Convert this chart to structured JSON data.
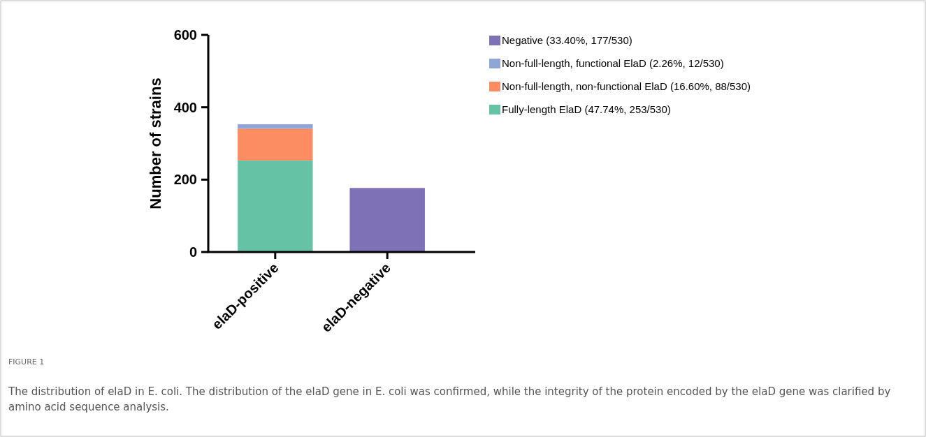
{
  "chart_data": {
    "type": "bar",
    "stacked": true,
    "categories": [
      "elaD-positive",
      "elaD-negative"
    ],
    "series": [
      {
        "name": "Fully-length ElaD (47.74%, 253/530)",
        "color": "#66c2a5",
        "values": [
          253,
          null
        ]
      },
      {
        "name": "Non-full-length, non-functional ElaD (16.60%, 88/530)",
        "color": "#fc8d62",
        "values": [
          88,
          null
        ]
      },
      {
        "name": "Non-full-length, functional ElaD (2.26%, 12/530)",
        "color": "#8fa5d6",
        "values": [
          12,
          null
        ]
      },
      {
        "name": "Negative (33.40%, 177/530)",
        "color": "#7e71b6",
        "values": [
          null,
          177
        ]
      }
    ],
    "ylabel": "Number of strains",
    "ylim": [
      0,
      600
    ],
    "yticks": [
      0,
      200,
      400,
      600
    ],
    "grid": false,
    "legend": "top right",
    "annotations": [
      "FIGURE 1",
      "The distribution of elaD in E. coli. The distribution of the elaD gene in E. coli was confirmed, while the integrity of the protein encoded by the elaD gene was clarified by amino acid sequence analysis."
    ]
  }
}
